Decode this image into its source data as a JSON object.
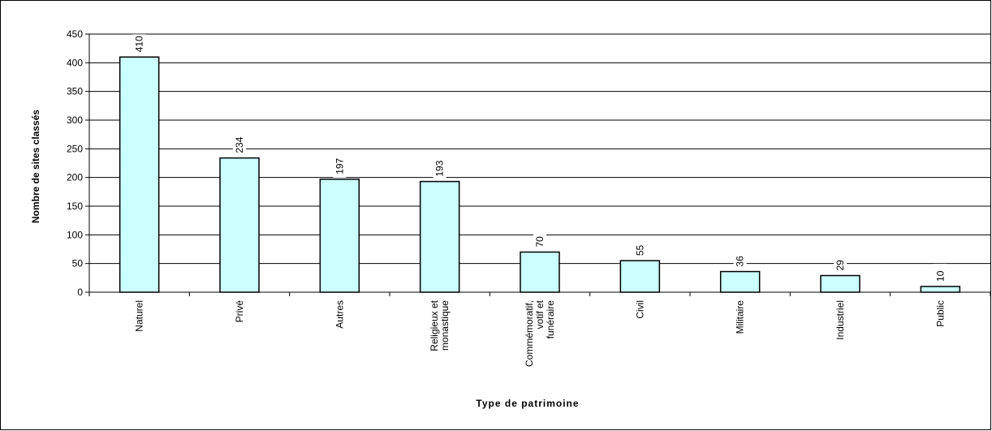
{
  "chart_data": {
    "type": "bar",
    "xlabel": "Type de patrimoine",
    "ylabel": "Nombre de sites classés",
    "ylim": [
      0,
      450
    ],
    "yticks": [
      0,
      50,
      100,
      150,
      200,
      250,
      300,
      350,
      400,
      450
    ],
    "grid": true,
    "categories": [
      [
        "Naturel"
      ],
      [
        "Privé"
      ],
      [
        "Autres"
      ],
      [
        "Religieux et",
        "monastique"
      ],
      [
        "Commémoratif,",
        "votif et",
        "funéraire"
      ],
      [
        "Civil"
      ],
      [
        "Militaire"
      ],
      [
        "Industriel"
      ],
      [
        "Public"
      ]
    ],
    "values": [
      410,
      234,
      197,
      193,
      70,
      55,
      36,
      29,
      10
    ],
    "bar_color": "#ccffff",
    "bar_edge_color": "#000000"
  }
}
